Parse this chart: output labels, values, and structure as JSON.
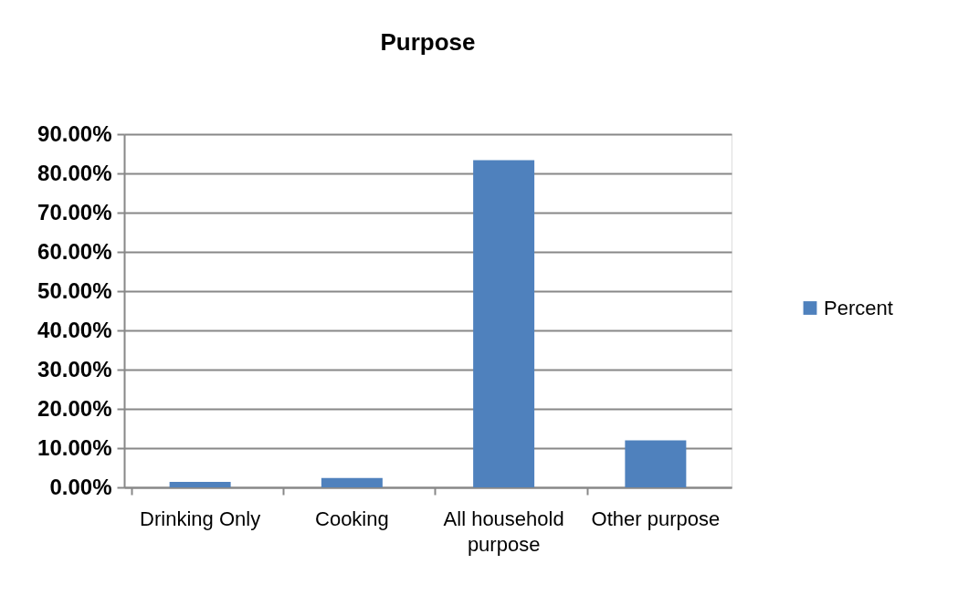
{
  "chart_data": {
    "type": "bar",
    "title": "Purpose",
    "categories": [
      "Drinking Only",
      "Cooking",
      "All household purpose",
      "Other purpose"
    ],
    "series": [
      {
        "name": "Percent",
        "color": "#4f81bd",
        "values": [
          1.4,
          2.4,
          83.4,
          12.0
        ]
      }
    ],
    "ylim": [
      0,
      90
    ],
    "yticks": [
      {
        "value": 0,
        "label": "0.00%"
      },
      {
        "value": 10,
        "label": "10.00%"
      },
      {
        "value": 20,
        "label": "20.00%"
      },
      {
        "value": 30,
        "label": "30.00%"
      },
      {
        "value": 40,
        "label": "40.00%"
      },
      {
        "value": 50,
        "label": "50.00%"
      },
      {
        "value": 60,
        "label": "60.00%"
      },
      {
        "value": 70,
        "label": "70.00%"
      },
      {
        "value": 80,
        "label": "80.00%"
      },
      {
        "value": 90,
        "label": "90.00%"
      }
    ],
    "grid": "y",
    "legend": "right"
  }
}
